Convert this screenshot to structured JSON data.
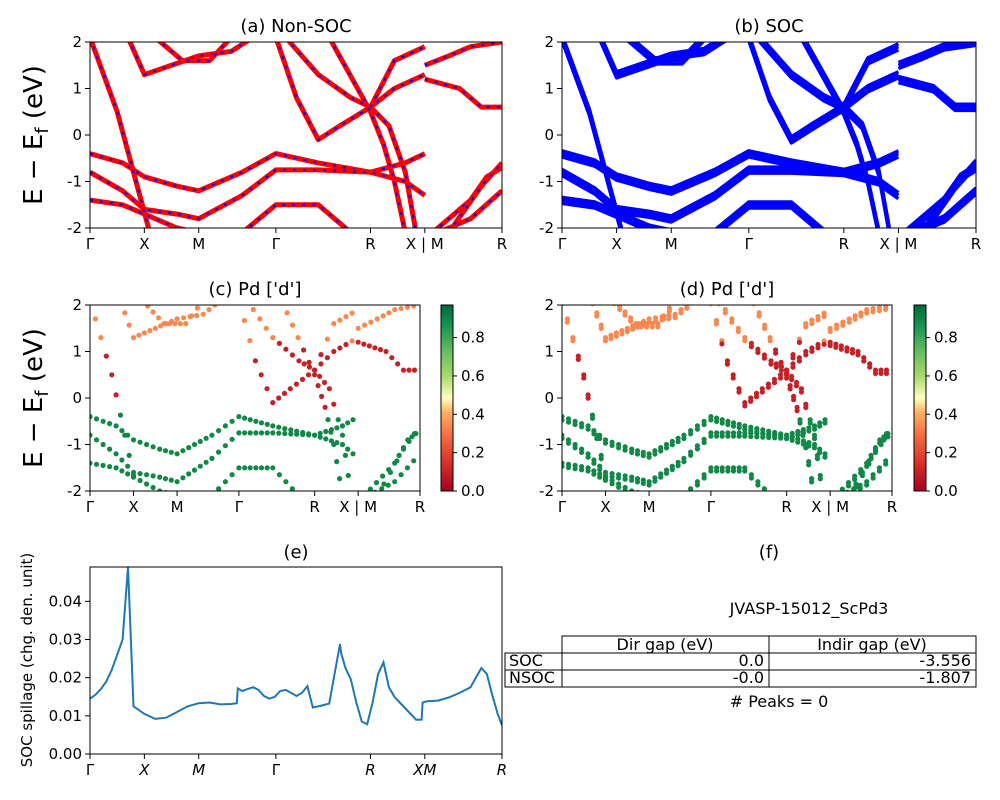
{
  "page": {
    "jid_label": "JVASP-15012_ScPd3",
    "peaks_label": "# Peaks = 0"
  },
  "ylabel_main": "E − E",
  "ylabel_sub": "f",
  "ylabel_unit": " (eV)",
  "colors": {
    "nonsoc": "#ff0000",
    "soc": "#0000ff",
    "spill": "#1f77b4"
  },
  "chart_data": [
    {
      "id": "a",
      "type": "line",
      "title": "(a) Non-SOC",
      "ylim": [
        -2,
        2
      ],
      "yticks": [
        -2,
        -1,
        0,
        1,
        2
      ],
      "xticks": [
        "Γ",
        "X",
        "M",
        "Γ",
        "R",
        "X | M",
        "R"
      ],
      "xtick_pos": [
        0,
        0.5,
        1.0,
        1.71,
        2.58,
        3.08,
        3.79
      ],
      "xlim": [
        0,
        3.79
      ],
      "bands": [
        [
          [
            0,
            -0.4
          ],
          [
            0.3,
            -0.6
          ],
          [
            0.5,
            -0.9
          ],
          [
            0.8,
            -1.1
          ],
          [
            1.0,
            -1.2
          ],
          [
            1.4,
            -0.8
          ],
          [
            1.71,
            -0.4
          ],
          [
            2.1,
            -0.6
          ],
          [
            2.58,
            -0.8
          ],
          [
            2.9,
            -0.6
          ],
          [
            3.08,
            -0.4
          ]
        ],
        [
          [
            0,
            -0.8
          ],
          [
            0.3,
            -1.2
          ],
          [
            0.5,
            -1.6
          ],
          [
            0.8,
            -1.7
          ],
          [
            1.0,
            -1.8
          ],
          [
            1.4,
            -1.3
          ],
          [
            1.71,
            -0.75
          ],
          [
            2.1,
            -0.75
          ],
          [
            2.58,
            -0.8
          ],
          [
            2.9,
            -1.0
          ],
          [
            3.08,
            -1.3
          ]
        ],
        [
          [
            0,
            -1.4
          ],
          [
            0.3,
            -1.5
          ],
          [
            0.5,
            -1.7
          ],
          [
            0.8,
            -2.0
          ],
          [
            1.0,
            -2.1
          ]
        ],
        [
          [
            1.4,
            -2.1
          ],
          [
            1.71,
            -1.5
          ],
          [
            2.1,
            -1.5
          ],
          [
            2.4,
            -2.1
          ]
        ],
        [
          [
            0,
            2.1
          ],
          [
            0.25,
            0.5
          ],
          [
            0.4,
            -0.8
          ],
          [
            0.55,
            -2.1
          ]
        ],
        [
          [
            0.35,
            2.1
          ],
          [
            0.5,
            1.3
          ],
          [
            0.75,
            1.5
          ],
          [
            1.0,
            1.7
          ],
          [
            1.3,
            1.8
          ],
          [
            1.5,
            2.1
          ]
        ],
        [
          [
            0.6,
            2.1
          ],
          [
            0.85,
            1.6
          ],
          [
            1.1,
            1.6
          ],
          [
            1.3,
            2.1
          ]
        ],
        [
          [
            1.71,
            2.1
          ],
          [
            1.9,
            0.8
          ],
          [
            2.1,
            -0.1
          ],
          [
            2.3,
            0.2
          ],
          [
            2.58,
            0.6
          ],
          [
            2.8,
            1.0
          ],
          [
            3.08,
            1.3
          ]
        ],
        [
          [
            1.8,
            2.1
          ],
          [
            2.1,
            1.3
          ],
          [
            2.4,
            0.8
          ],
          [
            2.58,
            0.6
          ],
          [
            2.75,
            0.2
          ],
          [
            2.9,
            -0.8
          ],
          [
            3.0,
            -2.1
          ]
        ],
        [
          [
            2.58,
            0.6
          ],
          [
            2.8,
            1.6
          ],
          [
            3.08,
            1.9
          ]
        ],
        [
          [
            2.2,
            2.1
          ],
          [
            2.58,
            0.5
          ],
          [
            2.7,
            -0.2
          ],
          [
            2.8,
            -1.0
          ],
          [
            2.9,
            -2.1
          ]
        ],
        [
          [
            3.08,
            1.5
          ],
          [
            3.3,
            1.7
          ],
          [
            3.5,
            1.9
          ],
          [
            3.79,
            2.0
          ]
        ],
        [
          [
            3.08,
            1.2
          ],
          [
            3.4,
            1.0
          ],
          [
            3.6,
            0.6
          ],
          [
            3.79,
            0.6
          ]
        ],
        [
          [
            3.15,
            -2.1
          ],
          [
            3.5,
            -1.4
          ],
          [
            3.65,
            -0.9
          ],
          [
            3.79,
            -0.7
          ]
        ],
        [
          [
            3.2,
            -2.1
          ],
          [
            3.5,
            -1.8
          ],
          [
            3.79,
            -1.2
          ]
        ],
        [
          [
            3.3,
            -2.1
          ],
          [
            3.6,
            -1.1
          ],
          [
            3.79,
            -0.6
          ]
        ]
      ]
    },
    {
      "id": "b",
      "type": "line",
      "title": "(b) SOC",
      "ylim": [
        -2,
        2
      ],
      "yticks": [
        -2,
        -1,
        0,
        1,
        2
      ],
      "xticks": [
        "Γ",
        "X",
        "M",
        "Γ",
        "R",
        "X | M",
        "R"
      ],
      "xtick_pos": [
        0,
        0.5,
        1.0,
        1.71,
        2.58,
        3.08,
        3.79
      ],
      "xlim": [
        0,
        3.79
      ]
    },
    {
      "id": "c",
      "type": "scatter",
      "title": "(c)  Pd ['d']",
      "ylim": [
        -2,
        2
      ],
      "yticks": [
        -2,
        -1,
        0,
        1,
        2
      ],
      "xticks": [
        "Γ",
        "X",
        "M",
        "Γ",
        "R",
        "X | M",
        "R"
      ],
      "xtick_pos": [
        0,
        0.5,
        1.0,
        1.71,
        2.58,
        3.08,
        3.79
      ],
      "xlim": [
        0,
        3.79
      ],
      "colorbar": {
        "ticks": [
          0.0,
          0.2,
          0.4,
          0.6,
          0.8
        ],
        "range": [
          0,
          0.97
        ]
      }
    },
    {
      "id": "d",
      "type": "scatter",
      "title": "(d) Pd ['d']",
      "ylim": [
        -2,
        2
      ],
      "yticks": [
        -2,
        -1,
        0,
        1,
        2
      ],
      "xticks": [
        "Γ",
        "X",
        "M",
        "Γ",
        "R",
        "X | M",
        "R"
      ],
      "xtick_pos": [
        0,
        0.5,
        1.0,
        1.71,
        2.58,
        3.08,
        3.79
      ],
      "xlim": [
        0,
        3.79
      ],
      "colorbar": {
        "ticks": [
          0.0,
          0.2,
          0.4,
          0.6,
          0.8
        ],
        "range": [
          0,
          0.97
        ]
      }
    },
    {
      "id": "e",
      "type": "line",
      "title": "(e)",
      "ylabel": "SOC spillage (chg. den. unit)",
      "ylim": [
        0,
        0.049
      ],
      "yticks": [
        0.0,
        0.01,
        0.02,
        0.03,
        0.04
      ],
      "ytick_labels": [
        "0.00",
        "0.01",
        "0.02",
        "0.03",
        "0.04"
      ],
      "xticks": [
        "Γ",
        "X",
        "M",
        "Γ",
        "R",
        "XM",
        "R"
      ],
      "xtick_pos": [
        0,
        0.5,
        1.0,
        1.71,
        2.58,
        3.08,
        3.79
      ],
      "xlim": [
        0,
        3.79
      ],
      "x": [
        0,
        0.05,
        0.1,
        0.15,
        0.2,
        0.25,
        0.3,
        0.35,
        0.4,
        0.5,
        0.6,
        0.7,
        0.8,
        0.9,
        1.0,
        1.1,
        1.2,
        1.3,
        1.35,
        1.36,
        1.4,
        1.45,
        1.5,
        1.55,
        1.6,
        1.65,
        1.7,
        1.75,
        1.8,
        1.85,
        1.9,
        1.95,
        2.0,
        2.05,
        2.1,
        2.12,
        2.2,
        2.3,
        2.31,
        2.35,
        2.4,
        2.45,
        2.5,
        2.55,
        2.6,
        2.65,
        2.7,
        2.75,
        2.8,
        2.85,
        3.0,
        3.05,
        3.06,
        3.1,
        3.2,
        3.3,
        3.4,
        3.5,
        3.6,
        3.65,
        3.7,
        3.75,
        3.79
      ],
      "y": [
        0.0145,
        0.0155,
        0.017,
        0.019,
        0.022,
        0.026,
        0.03,
        0.049,
        0.0125,
        0.0105,
        0.0092,
        0.0095,
        0.011,
        0.0125,
        0.0133,
        0.0135,
        0.013,
        0.0131,
        0.0133,
        0.0172,
        0.0165,
        0.017,
        0.0175,
        0.0168,
        0.0152,
        0.0145,
        0.015,
        0.0165,
        0.0168,
        0.016,
        0.0152,
        0.016,
        0.0178,
        0.0122,
        0.0125,
        0.0126,
        0.0132,
        0.0288,
        0.0265,
        0.0225,
        0.0195,
        0.0135,
        0.0085,
        0.0078,
        0.0135,
        0.021,
        0.024,
        0.0175,
        0.015,
        0.0135,
        0.009,
        0.009,
        0.0135,
        0.0138,
        0.014,
        0.0148,
        0.016,
        0.0175,
        0.0225,
        0.021,
        0.0155,
        0.0105,
        0.0075
      ]
    },
    {
      "id": "f",
      "type": "table",
      "title": "(f)",
      "headers": [
        "",
        "Dir gap (eV)",
        "Indir gap (eV)"
      ],
      "rows": [
        [
          "SOC",
          "0.0",
          "-3.556"
        ],
        [
          "NSOC",
          "-0.0",
          "-1.807"
        ]
      ]
    }
  ]
}
